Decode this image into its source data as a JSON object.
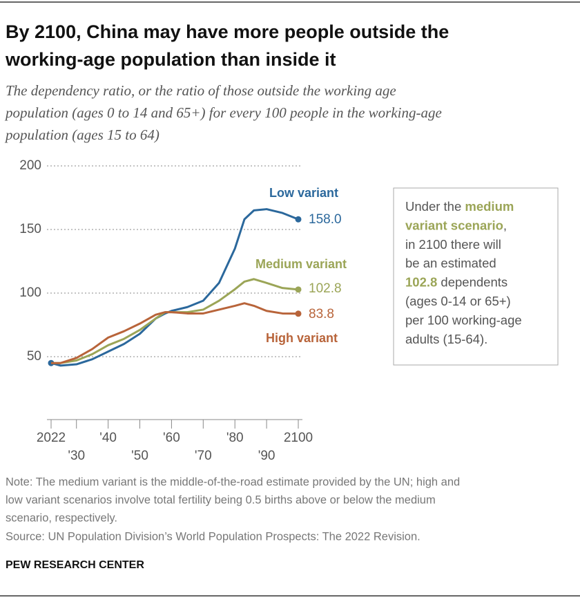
{
  "chart_data": {
    "type": "line",
    "title": [
      "By 2100, China may have more people outside the",
      "working-age population than inside it"
    ],
    "subtitle": [
      "The dependency ratio, or the ratio of those outside the working age",
      "population (ages 0 to 14 and 65+) for every 100 people in the working-age",
      "population (ages 15 to 64)"
    ],
    "xlim": [
      2022,
      2100
    ],
    "xticks": [
      {
        "value": 2022,
        "label": "2022"
      },
      {
        "value": 2030,
        "label": "'30"
      },
      {
        "value": 2040,
        "label": "'40"
      },
      {
        "value": 2050,
        "label": "'50"
      },
      {
        "value": 2060,
        "label": "'60"
      },
      {
        "value": 2070,
        "label": "'70"
      },
      {
        "value": 2080,
        "label": "'80"
      },
      {
        "value": 2090,
        "label": "'90"
      },
      {
        "value": 2100,
        "label": "2100"
      }
    ],
    "ylim": [
      0,
      200
    ],
    "yticks": [
      50,
      100,
      150,
      200
    ],
    "grid": true,
    "x": [
      2022,
      2025,
      2030,
      2035,
      2040,
      2045,
      2050,
      2055,
      2058,
      2060,
      2065,
      2070,
      2075,
      2080,
      2083,
      2086,
      2090,
      2095,
      2100
    ],
    "series": [
      {
        "name": "Low variant",
        "color": "#2b689c",
        "values": [
          45,
          43,
          44,
          48,
          54,
          60,
          68,
          80,
          84,
          86,
          89,
          94,
          108,
          135,
          158,
          165,
          166,
          163,
          158.0
        ],
        "value_labels": [
          null,
          null,
          null,
          null,
          null,
          null,
          null,
          null,
          null,
          null,
          null,
          null,
          null,
          null,
          null,
          null,
          null,
          null,
          "158.0"
        ]
      },
      {
        "name": "Medium variant",
        "color": "#9ba557",
        "values": [
          45,
          45,
          47,
          52,
          59,
          64,
          71,
          80,
          85,
          85,
          85,
          87,
          94,
          103,
          109,
          111,
          108,
          104,
          102.8
        ],
        "value_labels": [
          null,
          null,
          null,
          null,
          null,
          null,
          null,
          null,
          null,
          null,
          null,
          null,
          null,
          null,
          null,
          null,
          null,
          null,
          "102.8"
        ]
      },
      {
        "name": "High variant",
        "color": "#b8643a",
        "values": [
          45,
          45,
          49,
          56,
          65,
          70,
          76,
          83,
          85,
          85,
          84,
          84,
          87,
          90,
          92,
          90,
          86,
          84,
          83.8
        ],
        "value_labels": [
          null,
          null,
          null,
          null,
          null,
          null,
          null,
          null,
          null,
          null,
          null,
          null,
          null,
          null,
          null,
          null,
          null,
          null,
          "83.8"
        ]
      }
    ],
    "annotation": [
      [
        {
          "text": "Under the "
        },
        {
          "text": "medium",
          "highlight": true
        }
      ],
      [
        {
          "text": "variant scenario",
          "highlight": true
        },
        {
          "text": ","
        }
      ],
      [
        {
          "text": "in 2100 there will"
        }
      ],
      [
        {
          "text": "be an estimated"
        }
      ],
      [
        {
          "text": "102.8",
          "highlight": true
        },
        {
          "text": " dependents"
        }
      ],
      [
        {
          "text": "(ages 0-14 or 65+)"
        }
      ],
      [
        {
          "text": "per 100 working-age"
        }
      ],
      [
        {
          "text": "adults (15-64)."
        }
      ]
    ],
    "note": [
      "Note: The medium variant is the middle-of-the-road estimate provided by the UN; high and",
      "low variant scenarios involve total fertility being 0.5 births above or below the medium",
      "scenario, respectively."
    ],
    "source": "Source: UN Population Division’s World Population Prospects: The 2022 Revision.",
    "footer": "PEW RESEARCH CENTER"
  }
}
